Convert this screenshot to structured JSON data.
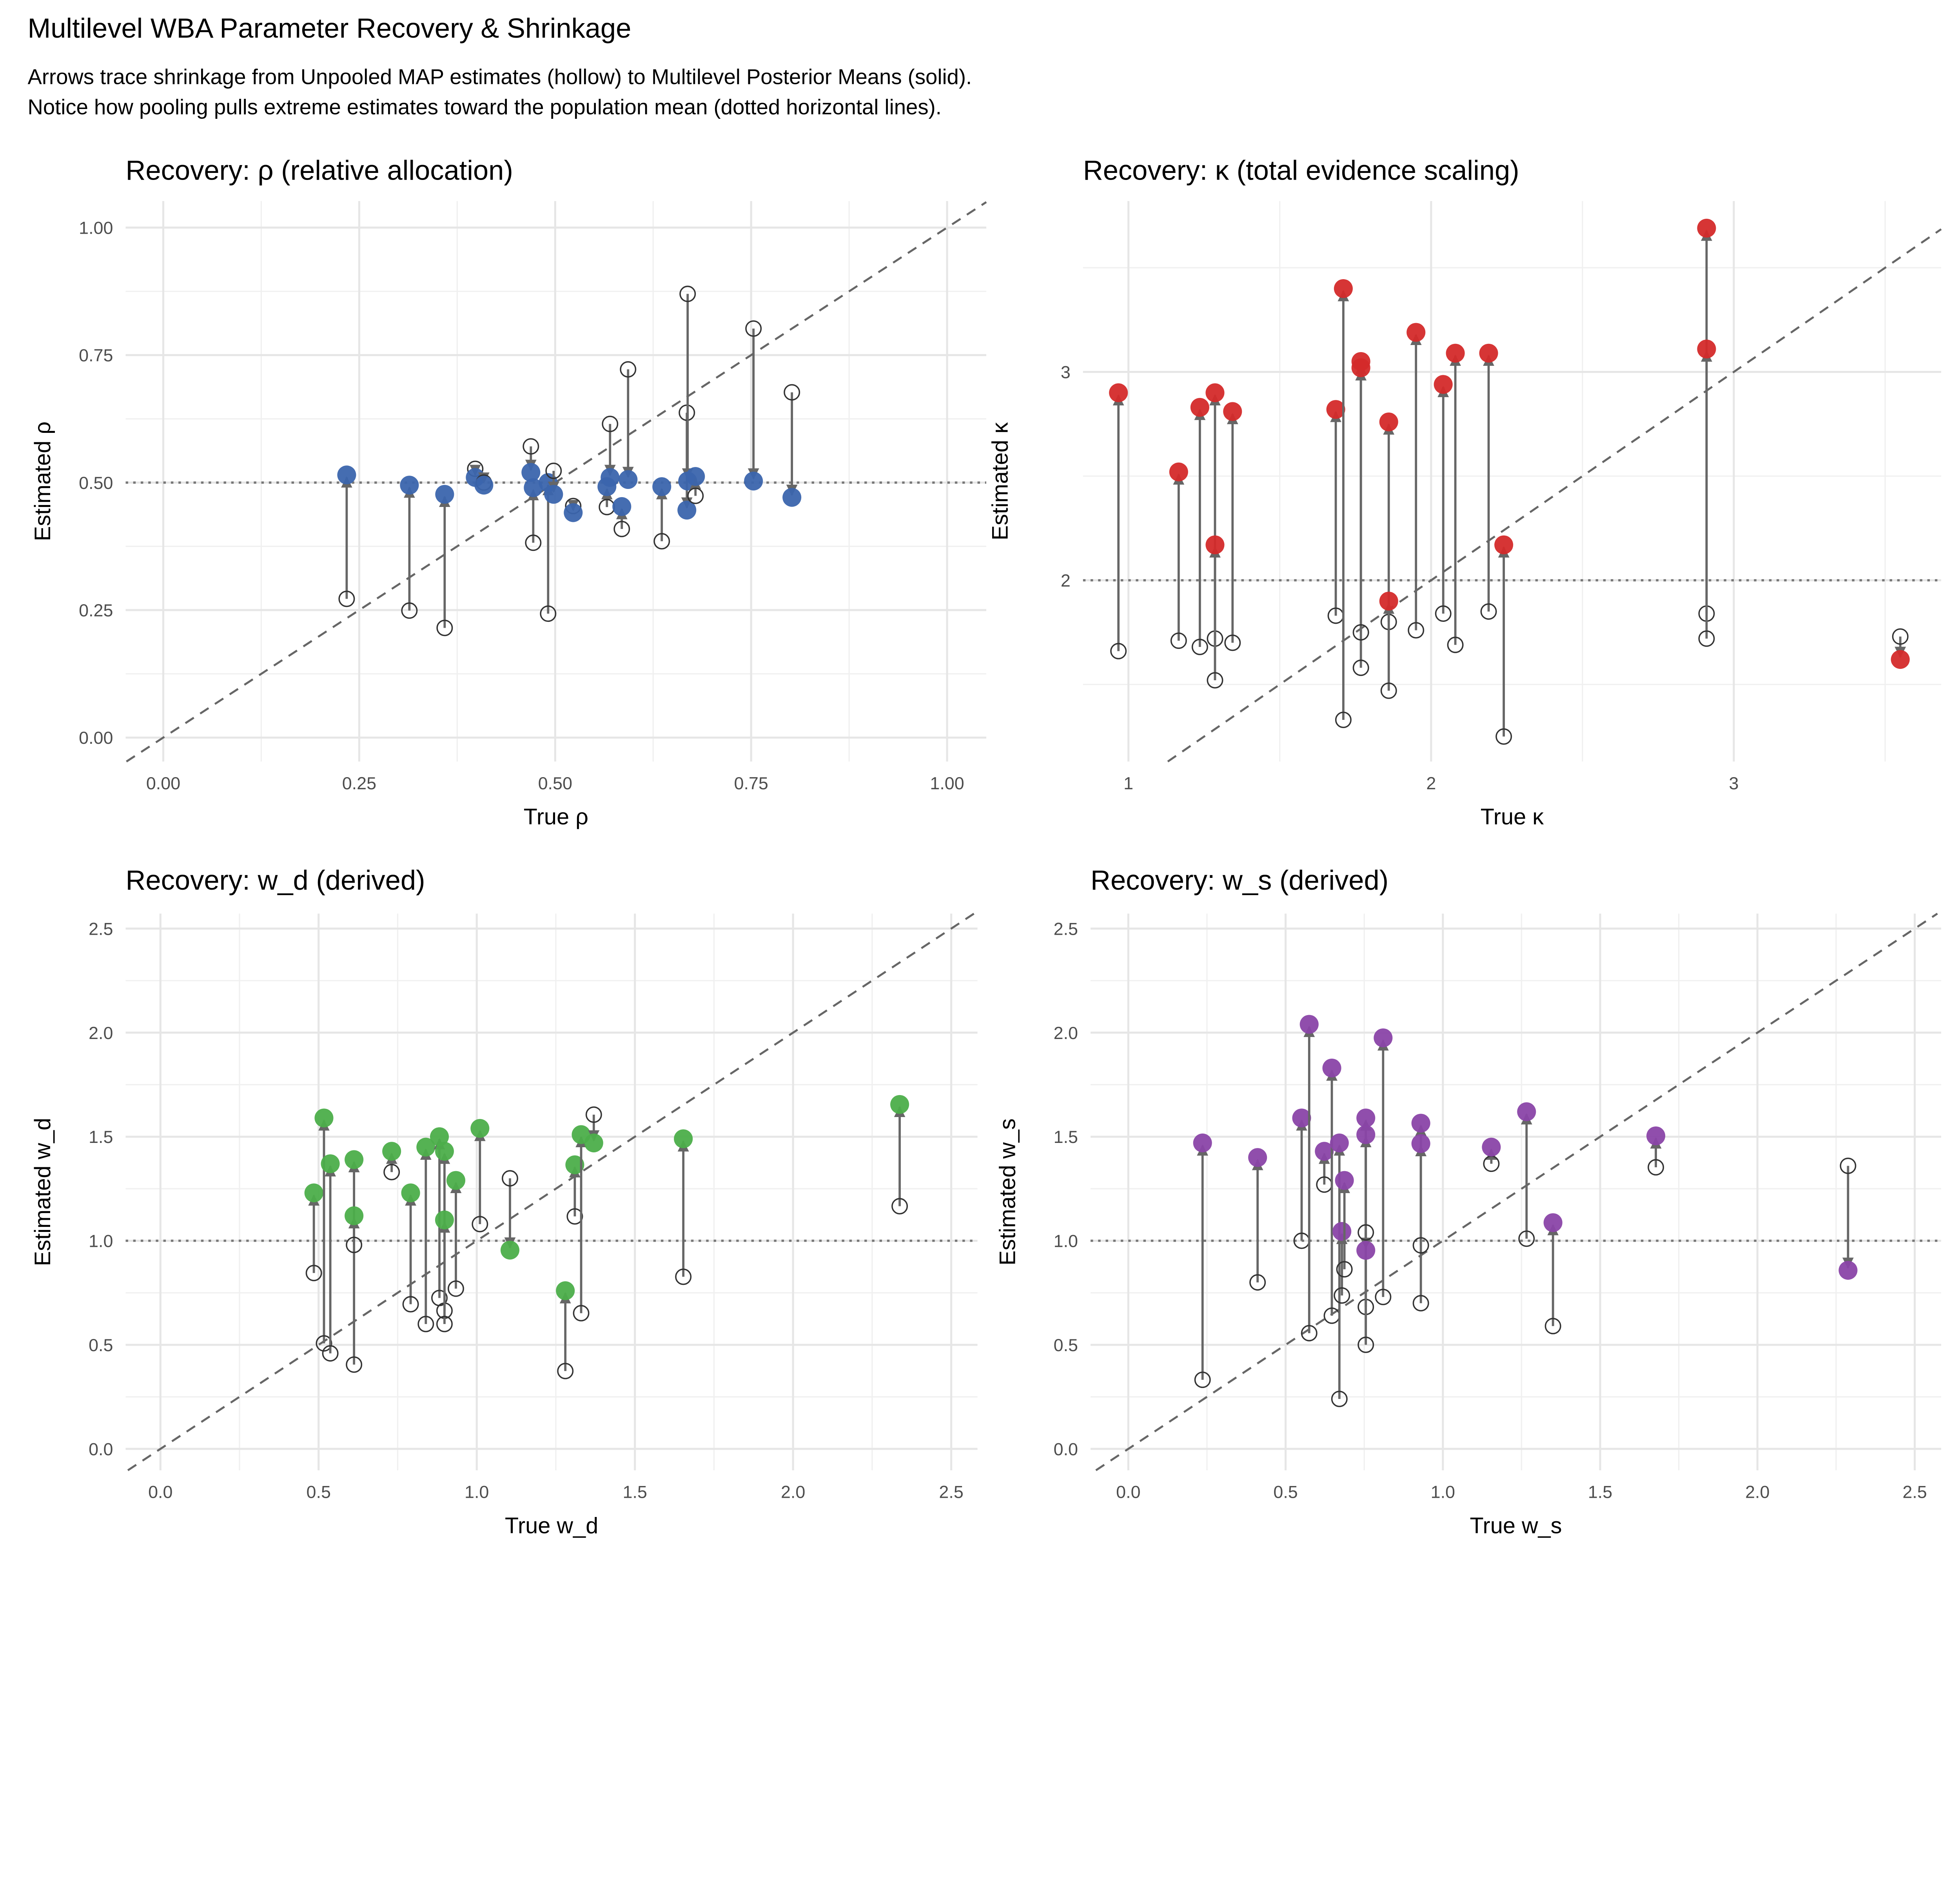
{
  "title": "Multilevel WBA Parameter Recovery & Shrinkage",
  "subtitle_lines": [
    "Arrows trace shrinkage from Unpooled MAP estimates (hollow) to Multilevel Posterior Means (solid).",
    "Notice how pooling pulls extreme estimates toward the population mean (dotted horizontal lines)."
  ],
  "chart_data": [
    {
      "type": "scatter",
      "title": "Recovery: ρ (relative allocation)",
      "xlabel": "True ρ",
      "ylabel": "Estimated ρ",
      "xlim": [
        -0.048,
        1.05
      ],
      "ylim": [
        -0.047,
        1.052
      ],
      "xticks": [
        0,
        0.25,
        0.5,
        0.75,
        1.0
      ],
      "xtick_labels": [
        "0.00",
        "0.25",
        "0.50",
        "0.75",
        "1.00"
      ],
      "yticks": [
        0,
        0.25,
        0.5,
        0.75,
        1.0
      ],
      "ytick_labels": [
        "0.00",
        "0.25",
        "0.50",
        "0.75",
        "1.00"
      ],
      "population_mean": 0.5,
      "color": "#3b65ad",
      "grid": true,
      "identity_line": true,
      "true": [
        0.234,
        0.314,
        0.359,
        0.398,
        0.409,
        0.469,
        0.472,
        0.491,
        0.498,
        0.523,
        0.566,
        0.57,
        0.585,
        0.593,
        0.636,
        0.668,
        0.669,
        0.679,
        0.753,
        0.802
      ],
      "unpooled": [
        0.272,
        0.249,
        0.215,
        0.527,
        0.5,
        0.571,
        0.382,
        0.243,
        0.523,
        0.454,
        0.452,
        0.615,
        0.409,
        0.722,
        0.385,
        0.637,
        0.87,
        0.474,
        0.802,
        0.677
      ],
      "pooled": [
        0.515,
        0.495,
        0.477,
        0.51,
        0.495,
        0.52,
        0.49,
        0.5,
        0.477,
        0.441,
        0.492,
        0.51,
        0.453,
        0.506,
        0.492,
        0.446,
        0.503,
        0.512,
        0.503,
        0.471
      ]
    },
    {
      "type": "scatter",
      "title": "Recovery: κ (total evidence scaling)",
      "xlabel": "True κ",
      "ylabel": "Estimated κ",
      "xlim": [
        0.85,
        3.685
      ],
      "ylim": [
        1.13,
        3.82
      ],
      "xticks": [
        1,
        2,
        3
      ],
      "xtick_labels": [
        "1",
        "2",
        "3"
      ],
      "yticks": [
        2,
        3
      ],
      "ytick_labels": [
        "2",
        "3"
      ],
      "population_mean": 2,
      "color": "#d42a2a",
      "grid": true,
      "identity_line": true,
      "true": [
        0.967,
        1.166,
        1.236,
        1.286,
        1.286,
        1.344,
        1.685,
        1.71,
        1.768,
        1.768,
        1.86,
        1.86,
        1.95,
        2.04,
        2.08,
        2.19,
        2.24,
        2.91,
        2.91,
        3.55
      ],
      "unpooled": [
        1.66,
        1.71,
        1.68,
        1.72,
        1.52,
        1.7,
        1.83,
        1.33,
        1.58,
        1.75,
        1.8,
        1.47,
        1.76,
        1.84,
        1.69,
        1.85,
        1.25,
        1.84,
        1.72,
        1.73
      ],
      "pooled": [
        2.9,
        2.52,
        2.83,
        2.9,
        2.17,
        2.81,
        2.82,
        3.4,
        3.05,
        3.02,
        2.76,
        1.9,
        3.19,
        2.94,
        3.09,
        3.09,
        2.17,
        3.69,
        3.11,
        1.62
      ]
    },
    {
      "type": "scatter",
      "title": "Recovery: w_d (derived)",
      "xlabel": "True w_d",
      "ylabel": "Estimated w_d",
      "xlim": [
        -0.11,
        2.583
      ],
      "ylim": [
        -0.103,
        2.572
      ],
      "xticks": [
        0,
        0.5,
        1.0,
        1.5,
        2.0,
        2.5
      ],
      "xtick_labels": [
        "0.0",
        "0.5",
        "1.0",
        "1.5",
        "2.0",
        "2.5"
      ],
      "yticks": [
        0,
        0.5,
        1.0,
        1.5,
        2.0,
        2.5
      ],
      "ytick_labels": [
        "0.0",
        "0.5",
        "1.0",
        "1.5",
        "2.0",
        "2.5"
      ],
      "population_mean": 1,
      "color": "#4cae4a",
      "grid": true,
      "identity_line": true,
      "true": [
        0.485,
        0.517,
        0.537,
        0.612,
        0.612,
        0.731,
        0.791,
        0.839,
        0.882,
        0.898,
        0.898,
        0.934,
        1.01,
        1.105,
        1.28,
        1.31,
        1.33,
        1.37,
        1.653,
        2.337
      ],
      "unpooled": [
        0.845,
        0.507,
        0.459,
        0.405,
        0.98,
        1.33,
        0.695,
        0.6,
        0.725,
        0.664,
        0.6,
        0.77,
        1.08,
        1.3,
        0.374,
        1.117,
        0.652,
        1.606,
        0.827,
        1.166
      ],
      "pooled": [
        1.23,
        1.59,
        1.37,
        1.39,
        1.12,
        1.43,
        1.23,
        1.45,
        1.5,
        1.43,
        1.1,
        1.29,
        1.54,
        0.955,
        0.76,
        1.365,
        1.51,
        1.47,
        1.49,
        1.655
      ]
    },
    {
      "type": "scatter",
      "title": "Recovery: w_s (derived)",
      "xlabel": "True w_s",
      "ylabel": "Estimated w_s",
      "xlim": [
        -0.12,
        2.584
      ],
      "ylim": [
        -0.103,
        2.572
      ],
      "xticks": [
        0,
        0.5,
        1.0,
        1.5,
        2.0,
        2.5
      ],
      "xtick_labels": [
        "0.0",
        "0.5",
        "1.0",
        "1.5",
        "2.0",
        "2.5"
      ],
      "yticks": [
        0,
        0.5,
        1.0,
        1.5,
        2.0,
        2.5
      ],
      "ytick_labels": [
        "0.0",
        "0.5",
        "1.0",
        "1.5",
        "2.0",
        "2.5"
      ],
      "population_mean": 1,
      "color": "#8a44a8",
      "grid": true,
      "identity_line": true,
      "true": [
        0.236,
        0.411,
        0.551,
        0.575,
        0.623,
        0.647,
        0.671,
        0.679,
        0.687,
        0.755,
        0.755,
        0.755,
        0.81,
        0.93,
        0.93,
        1.154,
        1.266,
        1.35,
        1.677,
        2.288
      ],
      "unpooled": [
        0.332,
        0.8,
        1.0,
        0.556,
        1.27,
        0.64,
        0.24,
        0.737,
        0.863,
        0.682,
        0.5,
        1.04,
        0.73,
        0.7,
        0.978,
        1.37,
        1.01,
        0.59,
        1.353,
        1.36
      ],
      "pooled": [
        1.47,
        1.4,
        1.59,
        2.04,
        1.43,
        1.83,
        1.47,
        1.045,
        1.29,
        1.59,
        1.51,
        0.954,
        1.975,
        1.565,
        1.467,
        1.45,
        1.62,
        1.087,
        1.504,
        0.858
      ]
    }
  ]
}
